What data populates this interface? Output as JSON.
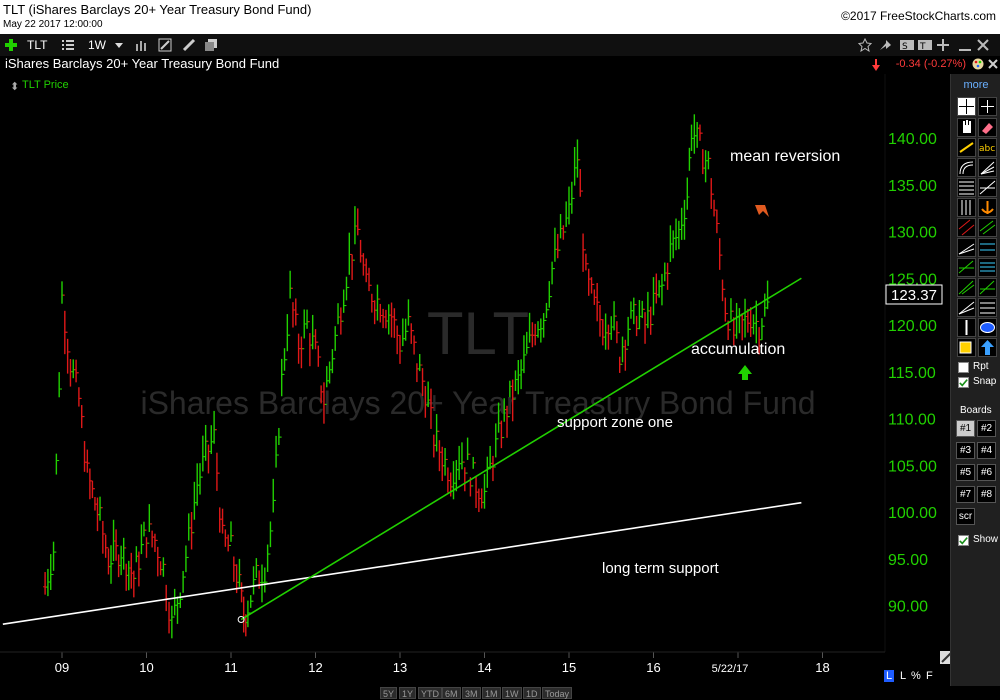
{
  "window": {
    "title": "TLT (iShares Barclays 20+ Year Treasury Bond Fund)",
    "datetime": "May 22 2017 12:00:00",
    "copyright": "©2017 FreeStockCharts.com"
  },
  "toolbar": {
    "symbol": "TLT",
    "interval": "1W"
  },
  "header": {
    "fund_name": "iShares Barclays 20+ Year Treasury Bond Fund",
    "change": "-0.34 (-0.27%)"
  },
  "legend": {
    "label": "TLT Price"
  },
  "watermark": {
    "symbol": "TLT",
    "name": "iShares Barclays 20+ Year Treasury Bond Fund"
  },
  "chart_data": {
    "type": "bar",
    "price_axis": {
      "ticks": [
        "140.00",
        "135.00",
        "130.00",
        "125.00",
        "120.00",
        "115.00",
        "110.00",
        "105.00",
        "100.00",
        "95.00",
        "90.00"
      ],
      "range": [
        85,
        145
      ]
    },
    "time_axis": {
      "ticks": [
        "09",
        "10",
        "11",
        "12",
        "13",
        "14",
        "15",
        "16",
        "5/22/17",
        "18"
      ]
    },
    "last_price": "123.37",
    "series": [
      {
        "values": [
          [
            2008.8,
            92
          ],
          [
            2008.9,
            96
          ],
          [
            2009.0,
            123
          ],
          [
            2009.1,
            116
          ],
          [
            2009.2,
            112
          ],
          [
            2009.3,
            104
          ],
          [
            2009.45,
            99
          ],
          [
            2009.55,
            95
          ],
          [
            2009.7,
            96
          ],
          [
            2009.85,
            93
          ],
          [
            2010.0,
            98
          ],
          [
            2010.1,
            97
          ],
          [
            2010.2,
            94
          ],
          [
            2010.3,
            88
          ],
          [
            2010.4,
            92
          ],
          [
            2010.5,
            97
          ],
          [
            2010.6,
            103
          ],
          [
            2010.7,
            106
          ],
          [
            2010.8,
            108
          ],
          [
            2010.9,
            97
          ],
          [
            2011.0,
            96
          ],
          [
            2011.1,
            92
          ],
          [
            2011.15,
            89
          ],
          [
            2011.2,
            90
          ],
          [
            2011.3,
            93
          ],
          [
            2011.4,
            94
          ],
          [
            2011.5,
            100
          ],
          [
            2011.6,
            114
          ],
          [
            2011.7,
            123
          ],
          [
            2011.8,
            118
          ],
          [
            2011.9,
            120
          ],
          [
            2012.0,
            117
          ],
          [
            2012.1,
            112
          ],
          [
            2012.2,
            117
          ],
          [
            2012.3,
            122
          ],
          [
            2012.4,
            127
          ],
          [
            2012.5,
            130
          ],
          [
            2012.6,
            124
          ],
          [
            2012.7,
            123
          ],
          [
            2012.8,
            122
          ],
          [
            2012.9,
            121
          ],
          [
            2013.0,
            118
          ],
          [
            2013.1,
            120
          ],
          [
            2013.2,
            116
          ],
          [
            2013.3,
            113
          ],
          [
            2013.4,
            108
          ],
          [
            2013.5,
            106
          ],
          [
            2013.6,
            104
          ],
          [
            2013.7,
            106
          ],
          [
            2013.8,
            105
          ],
          [
            2013.9,
            103
          ],
          [
            2014.0,
            102
          ],
          [
            2014.1,
            106
          ],
          [
            2014.2,
            109
          ],
          [
            2014.3,
            112
          ],
          [
            2014.4,
            114
          ],
          [
            2014.5,
            117
          ],
          [
            2014.6,
            120
          ],
          [
            2014.7,
            121
          ],
          [
            2014.8,
            126
          ],
          [
            2014.9,
            129
          ],
          [
            2015.0,
            132
          ],
          [
            2015.1,
            138
          ],
          [
            2015.2,
            125
          ],
          [
            2015.3,
            122
          ],
          [
            2015.4,
            120
          ],
          [
            2015.5,
            121
          ],
          [
            2015.6,
            117
          ],
          [
            2015.7,
            120
          ],
          [
            2015.8,
            121
          ],
          [
            2015.9,
            120
          ],
          [
            2016.0,
            122
          ],
          [
            2016.1,
            124
          ],
          [
            2016.2,
            128
          ],
          [
            2016.3,
            130
          ],
          [
            2016.4,
            134
          ],
          [
            2016.45,
            141
          ],
          [
            2016.55,
            139
          ],
          [
            2016.65,
            137
          ],
          [
            2016.75,
            130
          ],
          [
            2016.85,
            122
          ],
          [
            2016.95,
            119
          ],
          [
            2017.05,
            120
          ],
          [
            2017.15,
            121
          ],
          [
            2017.25,
            120
          ],
          [
            2017.35,
            122
          ],
          [
            2017.39,
            123.37
          ]
        ]
      }
    ],
    "trendlines": [
      {
        "name": "long term support",
        "from": [
          2008.3,
          88
        ],
        "to": [
          2017.75,
          101
        ]
      },
      {
        "name": "support zone one",
        "from": [
          2011.12,
          88.5
        ],
        "to": [
          2017.75,
          125
        ]
      }
    ],
    "annotations": [
      "mean reversion",
      "accumulation",
      "support zone one",
      "long term support"
    ]
  },
  "range_buttons": [
    "5Y",
    "1Y",
    "YTD",
    "6M",
    "3M",
    "1M",
    "1W",
    "1D",
    "Today"
  ],
  "bottom_right": {
    "l": "L",
    "pct": "%",
    "f": "F"
  },
  "sidepanel": {
    "more": "more",
    "rpt": "Rpt",
    "snap": "Snap",
    "boards_label": "Boards",
    "boards": [
      "#1",
      "#2",
      "#3",
      "#4",
      "#5",
      "#6",
      "#7",
      "#8",
      "scr"
    ],
    "show": "Show"
  },
  "colors": {
    "up": "#21d000",
    "down": "#e01818",
    "accent_axis": "#21d000",
    "trend_green": "#21d000",
    "trend_white": "#ffffff"
  }
}
